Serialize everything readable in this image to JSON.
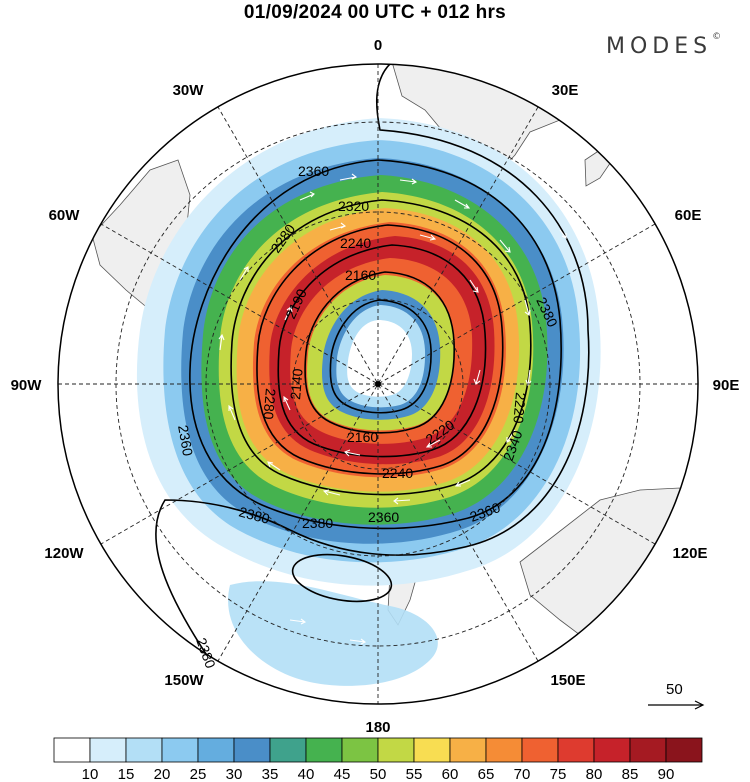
{
  "title": "01/09/2024  00 UTC  + 012 hrs",
  "brand": "MODES",
  "brand_mark": "©",
  "map": {
    "projection": "polar stereographic (south pole)",
    "longitude_labels": [
      "0",
      "30E",
      "60E",
      "90E",
      "120E",
      "150E",
      "180",
      "150W",
      "120W",
      "90W",
      "60W",
      "30W"
    ],
    "contour_labels": [
      "2360",
      "2320",
      "2280",
      "2240",
      "2160",
      "2190",
      "2140",
      "2160",
      "2240",
      "2220",
      "2340",
      "2360",
      "2380",
      "2380",
      "2360",
      "2380",
      "2220",
      "2280",
      "2360",
      "2380"
    ],
    "vector_reference": "50",
    "colors": {
      "land": "#efefef",
      "coast": "#555555",
      "contour": "#000000",
      "vectors": "#ffffff"
    }
  },
  "colorbar": {
    "ticks": [
      "10",
      "15",
      "20",
      "25",
      "30",
      "35",
      "40",
      "45",
      "50",
      "55",
      "60",
      "65",
      "70",
      "75",
      "80",
      "85",
      "90"
    ],
    "colors": [
      "#ffffff",
      "#d6eefb",
      "#b3dff6",
      "#8ccaf0",
      "#64addf",
      "#4a8ec8",
      "#3fa28c",
      "#45b24f",
      "#7cc443",
      "#c2d845",
      "#f8dd52",
      "#f7b046",
      "#f58c36",
      "#ef6131",
      "#de3b2f",
      "#c6222a",
      "#a51a22",
      "#8a141c"
    ]
  }
}
